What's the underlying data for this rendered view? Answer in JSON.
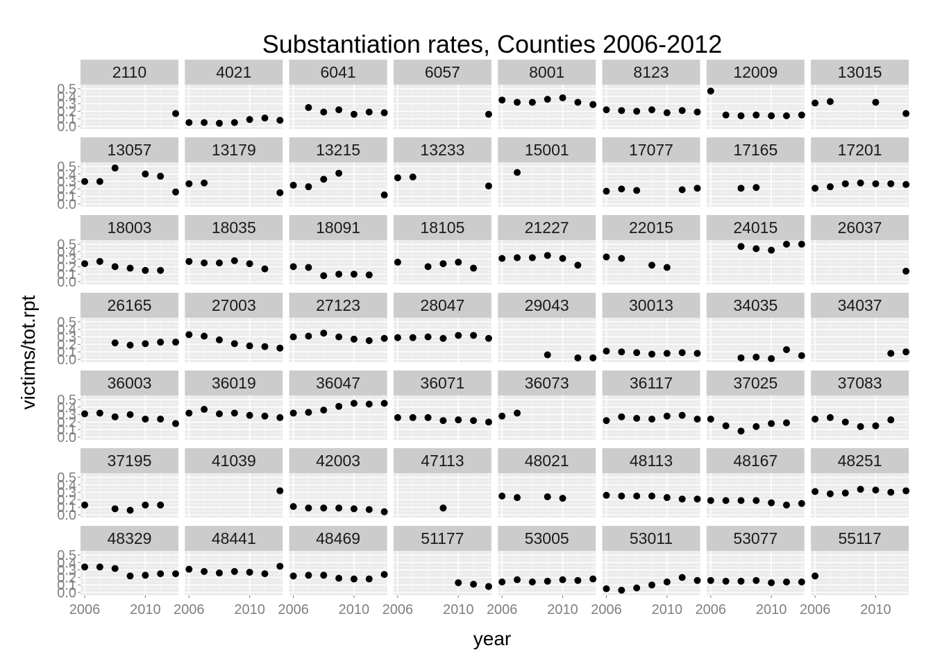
{
  "chart_data": {
    "type": "scatter",
    "title": "Substantiation rates, Counties 2006-2012",
    "xlabel": "year",
    "ylabel": "victims/tot.rpt",
    "xlim": [
      2006,
      2012
    ],
    "ylim": [
      0,
      0.5
    ],
    "x_ticks": [
      2006,
      2010
    ],
    "y_ticks": [
      0.0,
      0.1,
      0.2,
      0.3,
      0.4,
      0.5
    ],
    "y_tick_labels": [
      "0.0",
      "0.1",
      "0.2",
      "0.3",
      "0.4",
      "0.5"
    ],
    "grid": true,
    "layout": {
      "columns": 8,
      "rows": 7
    },
    "colors": {
      "panel": "#ebebeb",
      "strip": "#cccccc",
      "grid": "#ffffff",
      "point": "#000000",
      "tick_text": "#7f7f7f"
    },
    "panels": [
      {
        "name": "2110",
        "x": [
          2012
        ],
        "y": [
          0.17
        ]
      },
      {
        "name": "4021",
        "x": [
          2006,
          2007,
          2008,
          2009,
          2010,
          2011,
          2012
        ],
        "y": [
          0.05,
          0.05,
          0.04,
          0.05,
          0.09,
          0.11,
          0.08
        ]
      },
      {
        "name": "6041",
        "x": [
          2007,
          2008,
          2009,
          2010,
          2011,
          2012
        ],
        "y": [
          0.25,
          0.19,
          0.22,
          0.16,
          0.19,
          0.18
        ]
      },
      {
        "name": "6057",
        "x": [
          2012
        ],
        "y": [
          0.16
        ]
      },
      {
        "name": "8001",
        "x": [
          2006,
          2007,
          2008,
          2009,
          2010,
          2011,
          2012
        ],
        "y": [
          0.35,
          0.32,
          0.32,
          0.36,
          0.38,
          0.32,
          0.29
        ]
      },
      {
        "name": "8123",
        "x": [
          2006,
          2007,
          2008,
          2009,
          2010,
          2011,
          2012
        ],
        "y": [
          0.22,
          0.21,
          0.2,
          0.22,
          0.18,
          0.21,
          0.19
        ]
      },
      {
        "name": "12009",
        "x": [
          2006,
          2007,
          2008,
          2009,
          2010,
          2011,
          2012
        ],
        "y": [
          0.47,
          0.15,
          0.14,
          0.15,
          0.14,
          0.14,
          0.15
        ]
      },
      {
        "name": "13015",
        "x": [
          2006,
          2007,
          2010,
          2012
        ],
        "y": [
          0.31,
          0.33,
          0.32,
          0.17
        ]
      },
      {
        "name": "13057",
        "x": [
          2006,
          2007,
          2008,
          2010,
          2011,
          2012
        ],
        "y": [
          0.3,
          0.3,
          0.48,
          0.4,
          0.37,
          0.16
        ]
      },
      {
        "name": "13179",
        "x": [
          2006,
          2007,
          2012
        ],
        "y": [
          0.27,
          0.28,
          0.15
        ]
      },
      {
        "name": "13215",
        "x": [
          2006,
          2007,
          2008,
          2009,
          2012
        ],
        "y": [
          0.25,
          0.23,
          0.33,
          0.41,
          0.12
        ]
      },
      {
        "name": "13233",
        "x": [
          2006,
          2007,
          2012
        ],
        "y": [
          0.35,
          0.36,
          0.24
        ]
      },
      {
        "name": "15001",
        "x": [
          2007
        ],
        "y": [
          0.42
        ]
      },
      {
        "name": "17077",
        "x": [
          2006,
          2007,
          2008,
          2011,
          2012
        ],
        "y": [
          0.17,
          0.2,
          0.18,
          0.19,
          0.21
        ]
      },
      {
        "name": "17165",
        "x": [
          2008,
          2009
        ],
        "y": [
          0.21,
          0.22
        ]
      },
      {
        "name": "17201",
        "x": [
          2006,
          2007,
          2008,
          2009,
          2010,
          2011,
          2012
        ],
        "y": [
          0.21,
          0.23,
          0.27,
          0.28,
          0.27,
          0.27,
          0.26
        ]
      },
      {
        "name": "18003",
        "x": [
          2006,
          2007,
          2008,
          2009,
          2010,
          2011
        ],
        "y": [
          0.24,
          0.27,
          0.2,
          0.18,
          0.15,
          0.15
        ]
      },
      {
        "name": "18035",
        "x": [
          2006,
          2007,
          2008,
          2009,
          2010,
          2011
        ],
        "y": [
          0.27,
          0.25,
          0.25,
          0.28,
          0.24,
          0.17
        ]
      },
      {
        "name": "18091",
        "x": [
          2006,
          2007,
          2008,
          2009,
          2010,
          2011
        ],
        "y": [
          0.2,
          0.19,
          0.08,
          0.1,
          0.1,
          0.09
        ]
      },
      {
        "name": "18105",
        "x": [
          2006,
          2008,
          2009,
          2010,
          2011
        ],
        "y": [
          0.26,
          0.2,
          0.24,
          0.26,
          0.18
        ]
      },
      {
        "name": "21227",
        "x": [
          2006,
          2007,
          2008,
          2009,
          2010,
          2011
        ],
        "y": [
          0.31,
          0.32,
          0.32,
          0.35,
          0.31,
          0.22
        ]
      },
      {
        "name": "22015",
        "x": [
          2006,
          2007,
          2009,
          2010
        ],
        "y": [
          0.33,
          0.31,
          0.22,
          0.19
        ]
      },
      {
        "name": "24015",
        "x": [
          2008,
          2009,
          2010,
          2011,
          2012
        ],
        "y": [
          0.47,
          0.44,
          0.42,
          0.5,
          0.5
        ]
      },
      {
        "name": "26037",
        "x": [
          2012
        ],
        "y": [
          0.14
        ]
      },
      {
        "name": "26165",
        "x": [
          2008,
          2009,
          2010,
          2011,
          2012
        ],
        "y": [
          0.22,
          0.19,
          0.21,
          0.23,
          0.23
        ]
      },
      {
        "name": "27003",
        "x": [
          2006,
          2007,
          2008,
          2009,
          2010,
          2011,
          2012
        ],
        "y": [
          0.33,
          0.31,
          0.26,
          0.21,
          0.18,
          0.17,
          0.15
        ]
      },
      {
        "name": "27123",
        "x": [
          2006,
          2007,
          2008,
          2009,
          2010,
          2011,
          2012
        ],
        "y": [
          0.3,
          0.31,
          0.35,
          0.3,
          0.27,
          0.25,
          0.28
        ]
      },
      {
        "name": "28047",
        "x": [
          2006,
          2007,
          2008,
          2009,
          2010,
          2011,
          2012
        ],
        "y": [
          0.29,
          0.29,
          0.3,
          0.28,
          0.32,
          0.32,
          0.28
        ]
      },
      {
        "name": "29043",
        "x": [
          2009,
          2011,
          2012
        ],
        "y": [
          0.06,
          0.02,
          0.02
        ]
      },
      {
        "name": "30013",
        "x": [
          2006,
          2007,
          2008,
          2009,
          2010,
          2011,
          2012
        ],
        "y": [
          0.11,
          0.1,
          0.09,
          0.07,
          0.08,
          0.09,
          0.08
        ]
      },
      {
        "name": "34035",
        "x": [
          2008,
          2009,
          2010,
          2011,
          2012
        ],
        "y": [
          0.02,
          0.03,
          0.01,
          0.13,
          0.05
        ]
      },
      {
        "name": "34037",
        "x": [
          2011,
          2012
        ],
        "y": [
          0.08,
          0.1
        ]
      },
      {
        "name": "36003",
        "x": [
          2006,
          2007,
          2008,
          2009,
          2010,
          2011,
          2012
        ],
        "y": [
          0.31,
          0.32,
          0.27,
          0.3,
          0.24,
          0.24,
          0.18
        ]
      },
      {
        "name": "36019",
        "x": [
          2006,
          2007,
          2008,
          2009,
          2010,
          2011,
          2012
        ],
        "y": [
          0.32,
          0.37,
          0.31,
          0.32,
          0.29,
          0.28,
          0.26
        ]
      },
      {
        "name": "36047",
        "x": [
          2006,
          2007,
          2008,
          2009,
          2010,
          2011,
          2012
        ],
        "y": [
          0.32,
          0.33,
          0.36,
          0.41,
          0.45,
          0.44,
          0.45
        ]
      },
      {
        "name": "36071",
        "x": [
          2006,
          2007,
          2008,
          2009,
          2010,
          2011,
          2012
        ],
        "y": [
          0.26,
          0.26,
          0.26,
          0.22,
          0.23,
          0.22,
          0.2
        ]
      },
      {
        "name": "36073",
        "x": [
          2006,
          2007
        ],
        "y": [
          0.28,
          0.32
        ]
      },
      {
        "name": "36117",
        "x": [
          2006,
          2007,
          2008,
          2009,
          2010,
          2011,
          2012
        ],
        "y": [
          0.22,
          0.27,
          0.25,
          0.24,
          0.28,
          0.29,
          0.24
        ]
      },
      {
        "name": "37025",
        "x": [
          2006,
          2007,
          2008,
          2009,
          2010,
          2011
        ],
        "y": [
          0.24,
          0.15,
          0.08,
          0.14,
          0.18,
          0.19
        ]
      },
      {
        "name": "37083",
        "x": [
          2006,
          2007,
          2008,
          2009,
          2010,
          2011
        ],
        "y": [
          0.24,
          0.26,
          0.2,
          0.14,
          0.15,
          0.23
        ]
      },
      {
        "name": "37195",
        "x": [
          2006,
          2008,
          2009,
          2010,
          2011
        ],
        "y": [
          0.13,
          0.08,
          0.06,
          0.13,
          0.13
        ]
      },
      {
        "name": "41039",
        "x": [
          2012
        ],
        "y": [
          0.32
        ]
      },
      {
        "name": "42003",
        "x": [
          2006,
          2007,
          2008,
          2009,
          2010,
          2011,
          2012
        ],
        "y": [
          0.11,
          0.09,
          0.09,
          0.09,
          0.08,
          0.07,
          0.04
        ]
      },
      {
        "name": "47113",
        "x": [
          2009
        ],
        "y": [
          0.09
        ]
      },
      {
        "name": "48021",
        "x": [
          2006,
          2007,
          2009,
          2010
        ],
        "y": [
          0.25,
          0.23,
          0.24,
          0.22
        ]
      },
      {
        "name": "48113",
        "x": [
          2006,
          2007,
          2008,
          2009,
          2010,
          2011,
          2012
        ],
        "y": [
          0.26,
          0.25,
          0.25,
          0.25,
          0.23,
          0.21,
          0.21
        ]
      },
      {
        "name": "48167",
        "x": [
          2006,
          2007,
          2008,
          2009,
          2010,
          2011,
          2012
        ],
        "y": [
          0.19,
          0.19,
          0.19,
          0.19,
          0.16,
          0.13,
          0.15
        ]
      },
      {
        "name": "48251",
        "x": [
          2006,
          2007,
          2008,
          2009,
          2010,
          2011,
          2012
        ],
        "y": [
          0.31,
          0.28,
          0.29,
          0.34,
          0.33,
          0.3,
          0.32
        ]
      },
      {
        "name": "48329",
        "x": [
          2006,
          2007,
          2008,
          2009,
          2010,
          2011,
          2012
        ],
        "y": [
          0.34,
          0.34,
          0.32,
          0.22,
          0.23,
          0.25,
          0.25
        ]
      },
      {
        "name": "48441",
        "x": [
          2006,
          2007,
          2008,
          2009,
          2010,
          2011,
          2012
        ],
        "y": [
          0.31,
          0.28,
          0.26,
          0.28,
          0.27,
          0.25,
          0.35
        ]
      },
      {
        "name": "48469",
        "x": [
          2006,
          2007,
          2008,
          2009,
          2010,
          2011,
          2012
        ],
        "y": [
          0.22,
          0.23,
          0.23,
          0.19,
          0.18,
          0.18,
          0.24
        ]
      },
      {
        "name": "51177",
        "x": [
          2010,
          2011,
          2012
        ],
        "y": [
          0.13,
          0.11,
          0.08
        ]
      },
      {
        "name": "53005",
        "x": [
          2006,
          2007,
          2008,
          2009,
          2010,
          2011,
          2012
        ],
        "y": [
          0.14,
          0.17,
          0.14,
          0.15,
          0.17,
          0.16,
          0.18
        ]
      },
      {
        "name": "53011",
        "x": [
          2006,
          2007,
          2008,
          2009,
          2010,
          2011,
          2012
        ],
        "y": [
          0.05,
          0.03,
          0.06,
          0.1,
          0.14,
          0.2,
          0.16
        ]
      },
      {
        "name": "53077",
        "x": [
          2006,
          2007,
          2008,
          2009,
          2010,
          2011,
          2012
        ],
        "y": [
          0.16,
          0.15,
          0.15,
          0.16,
          0.13,
          0.14,
          0.14
        ]
      },
      {
        "name": "55117",
        "x": [
          2006
        ],
        "y": [
          0.22
        ]
      }
    ]
  }
}
